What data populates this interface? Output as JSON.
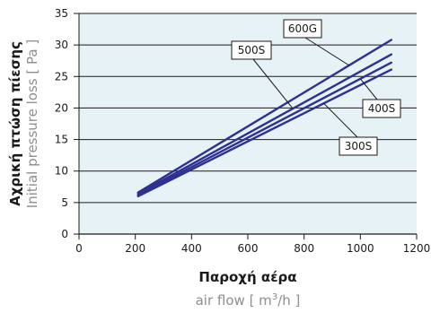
{
  "chart_data": {
    "type": "line",
    "xlabel_primary": "Παροχή αέρα",
    "xlabel_secondary": "air flow [ m",
    "xlabel_secondary_sup": "3",
    "xlabel_secondary_tail": "/h ]",
    "ylabel_primary": "Αχρική πτώση πίεσης",
    "ylabel_secondary": "Initial pressure loss [ Pa ]",
    "xlim": [
      0,
      1200
    ],
    "ylim": [
      0,
      35
    ],
    "x_ticks": [
      "0",
      "200",
      "400",
      "600",
      "800",
      "1000",
      "1200"
    ],
    "y_ticks": [
      "0",
      "5",
      "10",
      "15",
      "20",
      "25",
      "30",
      "35"
    ],
    "grid": "horizontal",
    "plot_background": "#e6f2f6",
    "line_color": "#2e3192",
    "series": [
      {
        "name": "600G",
        "x": [
          210,
          1110
        ],
        "y": [
          6.6,
          30.8
        ]
      },
      {
        "name": "500S",
        "x": [
          210,
          1110
        ],
        "y": [
          6.4,
          28.5
        ]
      },
      {
        "name": "400S",
        "x": [
          210,
          1110
        ],
        "y": [
          6.2,
          27.2
        ]
      },
      {
        "name": "300S",
        "x": [
          210,
          1110
        ],
        "y": [
          6.0,
          26.1
        ]
      }
    ]
  }
}
